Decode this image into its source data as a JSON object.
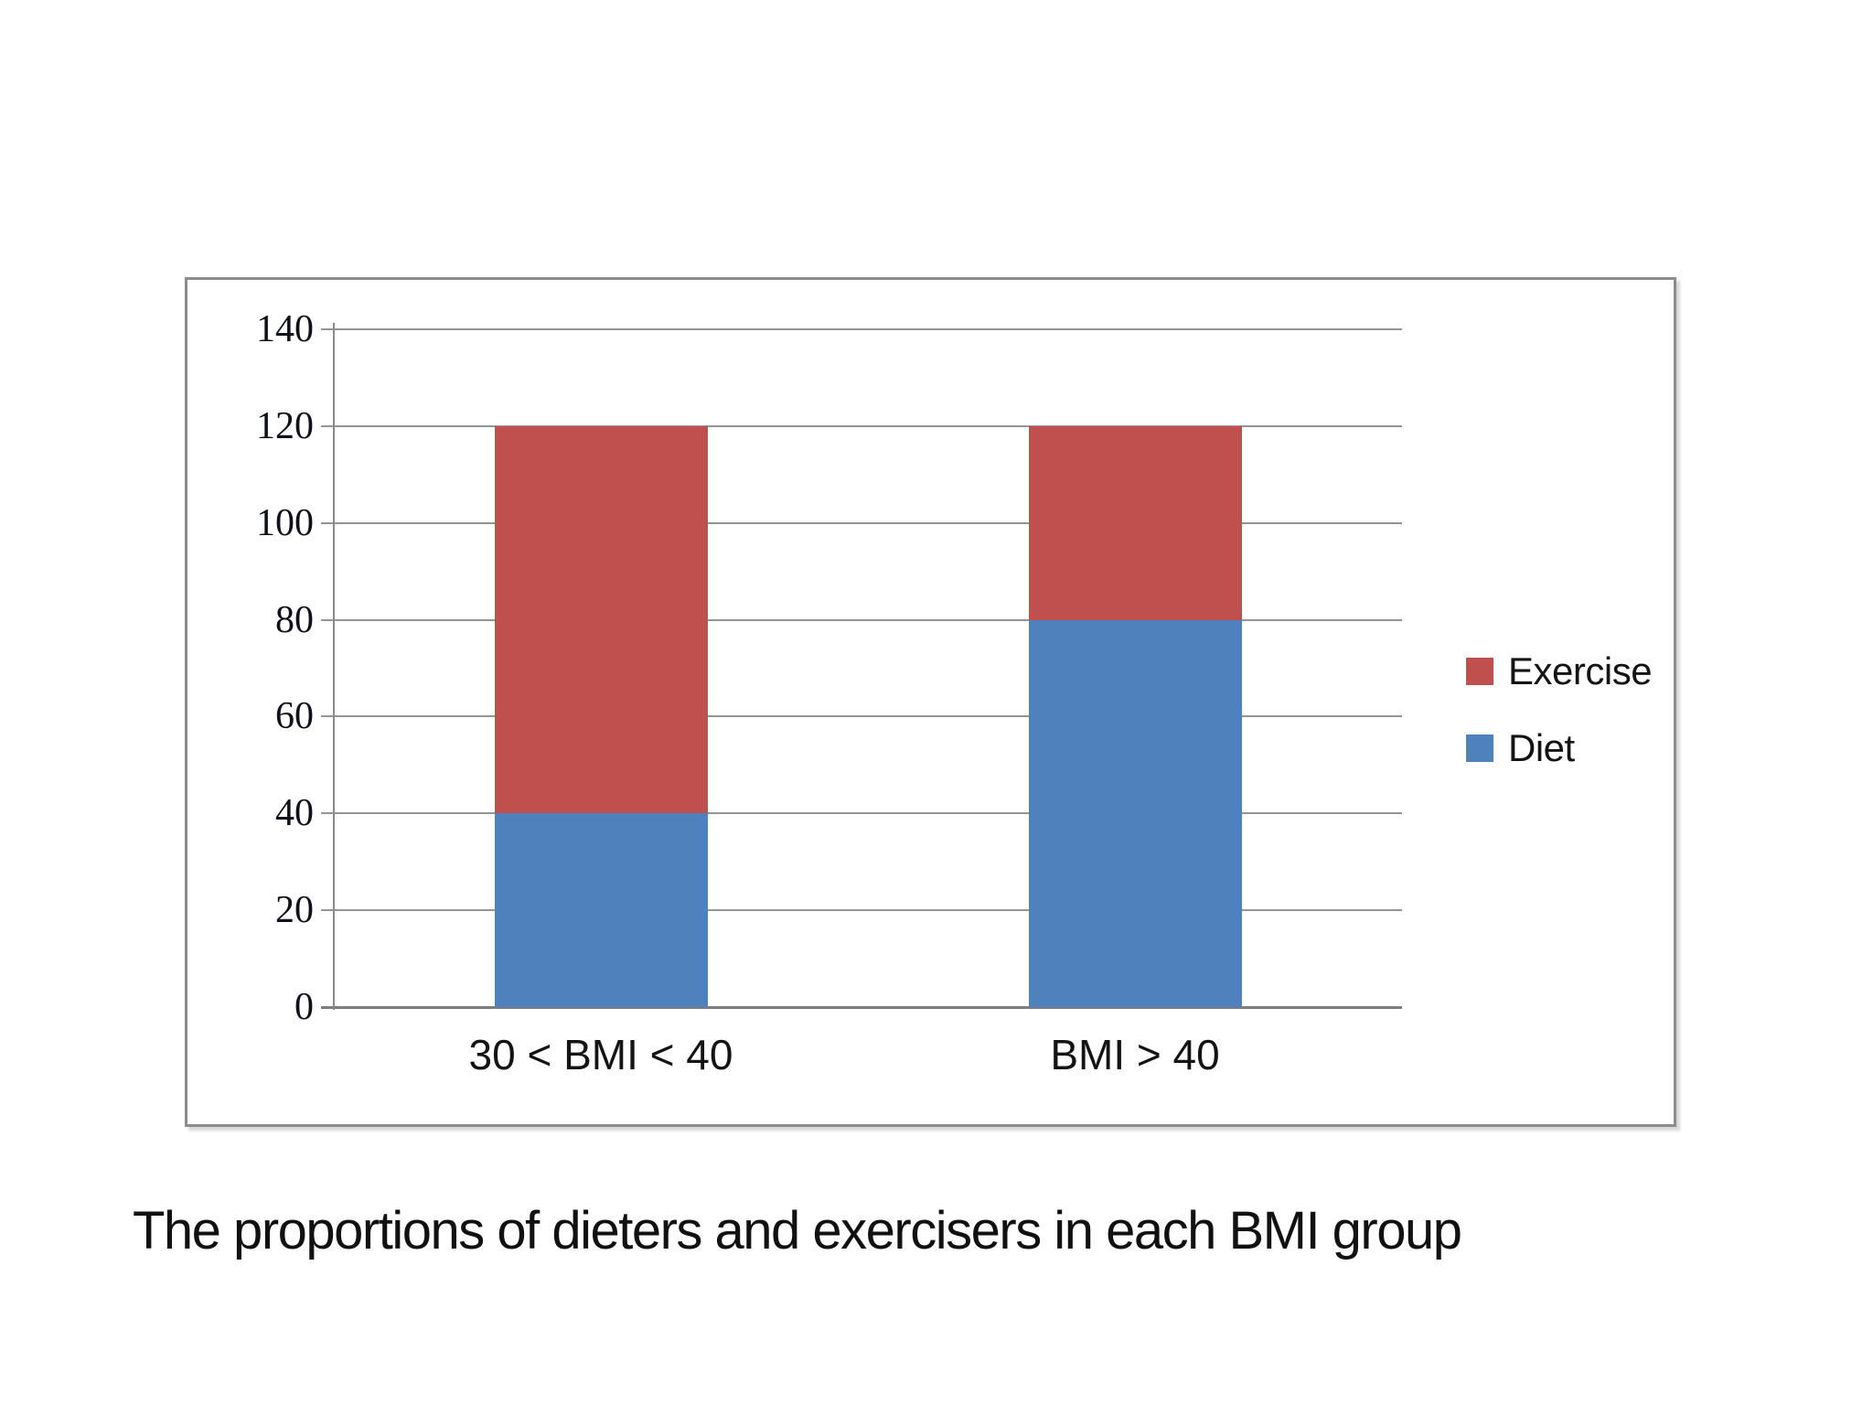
{
  "caption": "The proportions of dieters and exercisers in each BMI group",
  "chart_data": {
    "type": "bar",
    "stacked": true,
    "title": "",
    "xlabel": "",
    "ylabel": "",
    "categories": [
      "30 < BMI < 40",
      "BMI > 40"
    ],
    "series": [
      {
        "name": "Diet",
        "color": "#4F81BD",
        "values": [
          40,
          80
        ]
      },
      {
        "name": "Exercise",
        "color": "#C0504D",
        "values": [
          80,
          40
        ]
      }
    ],
    "totals": [
      120,
      120
    ],
    "y_axis": {
      "min": 0,
      "max": 140,
      "step": 20,
      "ticks": [
        140,
        120,
        100,
        80,
        60,
        40,
        20,
        0
      ]
    },
    "grid": true,
    "legend_position": "right",
    "legend_items": [
      {
        "label": "Exercise",
        "color": "#C0504D"
      },
      {
        "label": "Diet",
        "color": "#4F81BD"
      }
    ]
  },
  "colors": {
    "bar_blue": "#4F81BD",
    "bar_red": "#C0504D",
    "gridline": "#949494",
    "frame_border": "#8c8c8c",
    "text": "#141414"
  }
}
